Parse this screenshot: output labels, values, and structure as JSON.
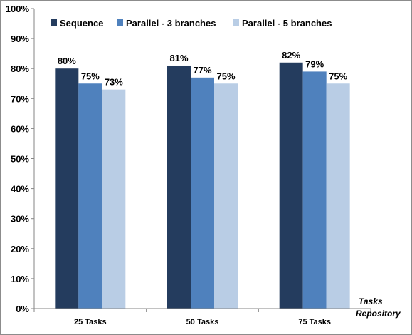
{
  "chart_data": {
    "type": "bar",
    "title": "",
    "xlabel": "Tasks Repository",
    "xlabel_lines": [
      "Tasks",
      "Repository"
    ],
    "ylabel": "",
    "ylim": [
      0,
      100
    ],
    "yticks": [
      "0%",
      "10%",
      "20%",
      "30%",
      "40%",
      "50%",
      "60%",
      "70%",
      "80%",
      "90%",
      "100%"
    ],
    "grid": false,
    "legend_position": "top",
    "categories": [
      "25 Tasks",
      "50 Tasks",
      "75 Tasks"
    ],
    "series": [
      {
        "name": "Sequence",
        "color": "#243c5e",
        "values": [
          80,
          81,
          82
        ],
        "labels": [
          "80%",
          "81%",
          "82%"
        ]
      },
      {
        "name": "Parallel - 3 branches",
        "color": "#4f81bd",
        "values": [
          75,
          77,
          79
        ],
        "labels": [
          "75%",
          "77%",
          "79%"
        ]
      },
      {
        "name": "Parallel - 5 branches",
        "color": "#b9cde5",
        "values": [
          73,
          75,
          75
        ],
        "labels": [
          "73%",
          "75%",
          "75%"
        ]
      }
    ]
  }
}
